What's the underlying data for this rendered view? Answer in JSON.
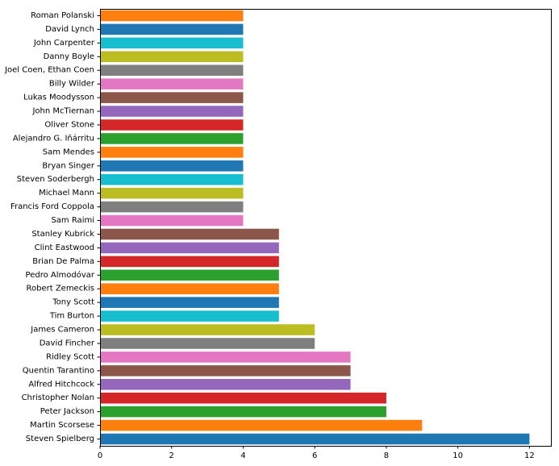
{
  "chart_data": {
    "type": "bar",
    "orientation": "horizontal",
    "title": "",
    "xlabel": "",
    "ylabel": "",
    "xlim": [
      0,
      12.6
    ],
    "x_ticks": [
      0,
      2,
      4,
      6,
      8,
      10,
      12
    ],
    "grid": false,
    "categories": [
      "Steven Spielberg",
      "Martin Scorsese",
      "Peter Jackson",
      "Christopher Nolan",
      "Alfred Hitchcock",
      "Quentin Tarantino",
      "Ridley Scott",
      "David Fincher",
      "James Cameron",
      "Tim Burton",
      "Tony Scott",
      "Robert Zemeckis",
      "Pedro Almodóvar",
      "Brian De Palma",
      "Clint Eastwood",
      "Stanley Kubrick",
      "Sam Raimi",
      "Francis Ford Coppola",
      "Michael Mann",
      "Steven Soderbergh",
      "Bryan Singer",
      "Sam Mendes",
      "Alejandro G. Iñárritu",
      "Oliver Stone",
      "John McTiernan",
      "Lukas Moodysson",
      "Billy Wilder",
      "Joel Coen, Ethan Coen",
      "Danny Boyle",
      "John Carpenter",
      "David Lynch",
      "Roman Polanski"
    ],
    "values": [
      12,
      9,
      8,
      8,
      7,
      7,
      7,
      6,
      6,
      5,
      5,
      5,
      5,
      5,
      5,
      5,
      4,
      4,
      4,
      4,
      4,
      4,
      4,
      4,
      4,
      4,
      4,
      4,
      4,
      4,
      4,
      4
    ],
    "colors": [
      "#1f77b4",
      "#ff7f0e",
      "#2ca02c",
      "#d62728",
      "#9467bd",
      "#8c564b",
      "#e377c2",
      "#7f7f7f",
      "#bcbd22",
      "#17becf"
    ]
  }
}
